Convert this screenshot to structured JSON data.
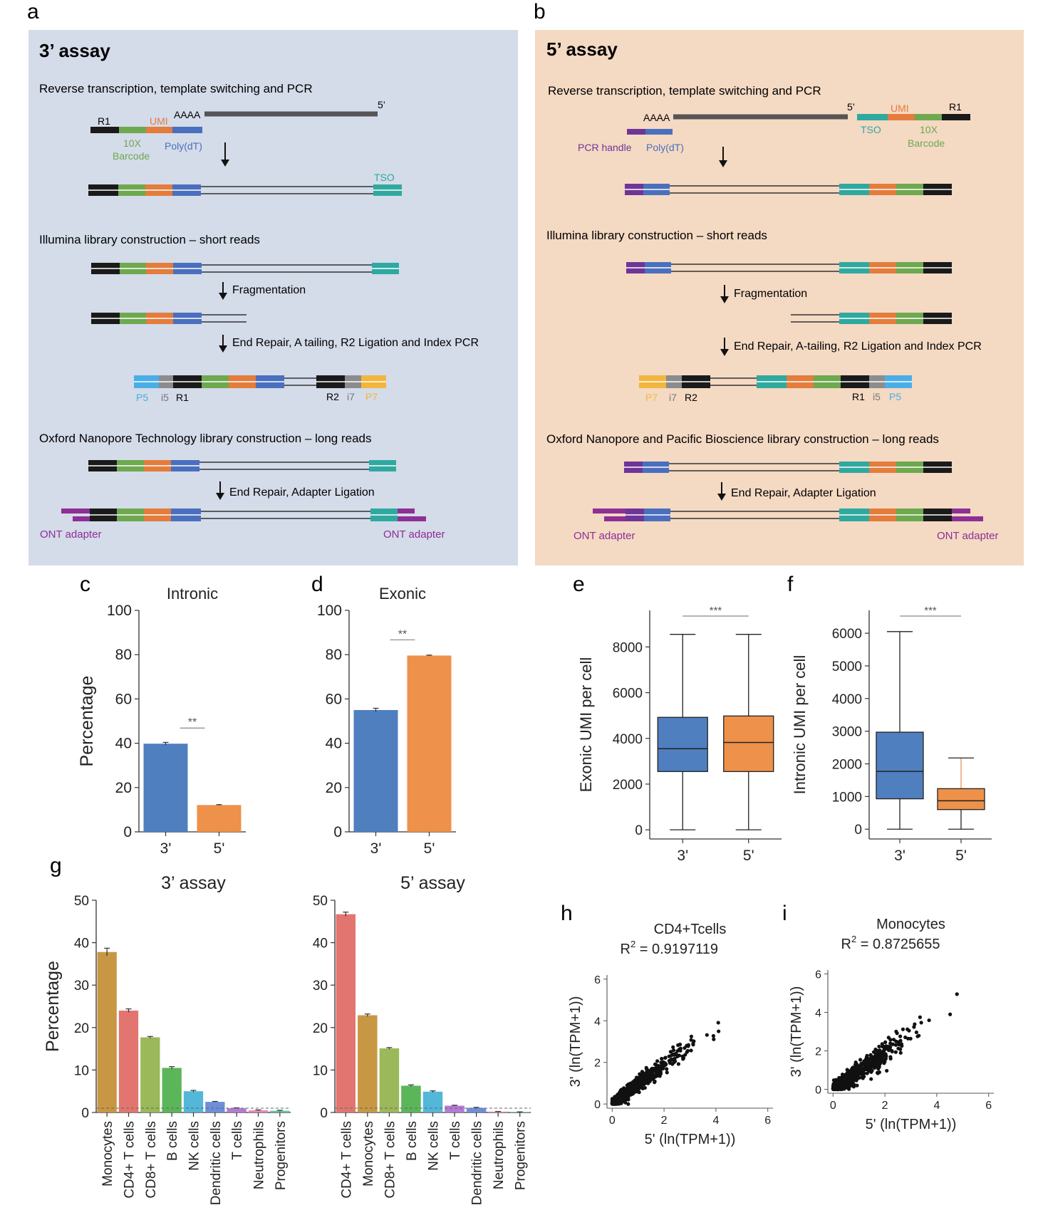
{
  "panels": {
    "a": {
      "letter": "a",
      "title": "3’ assay",
      "rt_heading": "Reverse transcription, template switching and PCR",
      "labels": {
        "r1": "R1",
        "umi": "UMI",
        "aaaa": "AAAA",
        "five_prime": "5’",
        "barcode_10x": "10X",
        "barcode": "Barcode",
        "polydt": "Poly(dT)",
        "tso": "TSO"
      },
      "illumina_heading": "Illumina library construction – short reads",
      "fragmentation": "Fragmentation",
      "end_repair": "End Repair, A tailing, R2 Ligation and Index PCR",
      "index_labels": {
        "p5": "P5",
        "i5": "i5",
        "r1": "R1",
        "r2": "R2",
        "i7": "i7",
        "p7": "P7"
      },
      "ont_heading": "Oxford Nanopore Technology library construction – long reads",
      "adapter_ligation": "End Repair, Adapter Ligation",
      "ont_left": "ONT adapter",
      "ont_right": "ONT adapter"
    },
    "b": {
      "letter": "b",
      "title": "5’ assay",
      "rt_heading": "Reverse transcription, template switching and PCR",
      "labels": {
        "aaaa": "AAAA",
        "five_prime": "5’",
        "umi": "UMI",
        "r1": "R1",
        "tso": "TSO",
        "barcode_10x": "10X",
        "barcode": "Barcode",
        "pcr_handle": "PCR handle",
        "polydt": "Poly(dT)"
      },
      "illumina_heading": "Illumina library construction – short reads",
      "fragmentation": "Fragmentation",
      "end_repair": "End Repair, A-tailing, R2 Ligation and Index PCR",
      "index_labels": {
        "p7": "P7",
        "i7": "i7",
        "r2": "R2",
        "r1": "R1",
        "i5": "i5",
        "p5": "P5"
      },
      "ont_heading": "Oxford Nanopore and Pacific Bioscience library construction – long reads",
      "adapter_ligation": "End Repair, Adapter Ligation",
      "ont_left": "ONT adapter",
      "ont_right": "ONT adapter"
    }
  },
  "colors": {
    "panel_a_bg": "#d4dbe9",
    "panel_b_bg": "#f4d9c3",
    "r1": "#1a1a1a",
    "barcode": "#6ea84f",
    "umi": "#e47c3c",
    "polydt": "#4a6fbe",
    "tso": "#2fa9a0",
    "pcr_handle": "#6f3596",
    "p5": "#4aaee6",
    "index": "#8c8c8c",
    "p7": "#f2b63e",
    "ont": "#8e2f95",
    "blue_bar": "#4f7fbf",
    "orange_bar": "#ee914a"
  },
  "chart_data": [
    {
      "panel": "c",
      "type": "bar",
      "title": "Intronic",
      "ylabel": "Percentage",
      "categories": [
        "3'",
        "5'"
      ],
      "values": [
        39.8,
        12.1
      ],
      "errors": [
        0.6,
        0.2
      ],
      "ylim": [
        0,
        100
      ],
      "yticks": [
        0,
        20,
        40,
        60,
        80,
        100
      ],
      "significance": "**"
    },
    {
      "panel": "d",
      "type": "bar",
      "title": "Exonic",
      "ylabel": "",
      "categories": [
        "3'",
        "5'"
      ],
      "values": [
        55.0,
        79.6
      ],
      "errors": [
        0.8,
        0.2
      ],
      "ylim": [
        0,
        100
      ],
      "yticks": [
        0,
        20,
        40,
        60,
        80,
        100
      ],
      "significance": "**"
    },
    {
      "panel": "e",
      "type": "box",
      "ylabel": "Exonic UMI per cell",
      "categories": [
        "3'",
        "5'"
      ],
      "boxes": [
        {
          "min": 0,
          "q1": 2550,
          "median": 3550,
          "q3": 4920,
          "max": 8550
        },
        {
          "min": 0,
          "q1": 2550,
          "median": 3820,
          "q3": 4980,
          "max": 8550
        }
      ],
      "ylim": [
        -400,
        9600
      ],
      "yticks": [
        0,
        2000,
        4000,
        6000,
        8000
      ],
      "significance": "***"
    },
    {
      "panel": "f",
      "type": "box",
      "ylabel": "Intronic UMI per cell",
      "categories": [
        "3'",
        "5'"
      ],
      "boxes": [
        {
          "min": 0,
          "q1": 930,
          "median": 1770,
          "q3": 2970,
          "max": 6050
        },
        {
          "min": 0,
          "q1": 600,
          "median": 870,
          "q3": 1240,
          "max": 2180
        }
      ],
      "ylim": [
        -300,
        6700
      ],
      "yticks": [
        0,
        1000,
        2000,
        3000,
        4000,
        5000,
        6000
      ],
      "significance": "***"
    },
    {
      "panel": "g",
      "type": "bar",
      "title": "3’ assay",
      "ylabel": "Percentage",
      "categories": [
        "Monocytes",
        "CD4+ T cells",
        "CD8+ T cells",
        "B cells",
        "NK cells",
        "Dendritic cells",
        "T cells",
        "Neutrophils",
        "Progenitors"
      ],
      "values": [
        37.8,
        24.0,
        17.7,
        10.5,
        5.0,
        2.5,
        1.0,
        0.5,
        0.4
      ],
      "errors": [
        0.9,
        0.4,
        0.2,
        0.3,
        0.2,
        0.1,
        0.1,
        0.1,
        0.1
      ],
      "ylim": [
        0,
        50
      ],
      "yticks": [
        0,
        10,
        20,
        30,
        40,
        50
      ]
    },
    {
      "panel": "g",
      "type": "bar",
      "title": "5’ assay",
      "ylabel": "",
      "categories": [
        "CD4+ T cells",
        "Monocytes",
        "CD8+ T cells",
        "B cells",
        "NK cells",
        "T cells",
        "Dendritic cells",
        "Neutrophils",
        "Progenitors"
      ],
      "values": [
        46.7,
        22.9,
        15.1,
        6.3,
        4.9,
        1.6,
        1.1,
        0.2,
        0.1
      ],
      "errors": [
        0.5,
        0.3,
        0.2,
        0.2,
        0.2,
        0.1,
        0.1,
        0.05,
        0.05
      ],
      "ylim": [
        0,
        50
      ],
      "yticks": [
        0,
        10,
        20,
        30,
        40,
        50
      ]
    },
    {
      "panel": "h",
      "type": "scatter",
      "title": "CD4+Tcells",
      "r2_prefix": "R",
      "r2_exp": "2",
      "r2_text": " = 0.9197119",
      "xlabel": "5' (ln(TPM+1))",
      "ylabel": "3' (ln(TPM+1))",
      "xlim": [
        -0.2,
        6.2
      ],
      "ylim": [
        -0.2,
        6.2
      ],
      "xticks": [
        0,
        2,
        4,
        6
      ],
      "yticks": [
        0,
        2,
        4,
        6
      ],
      "r2": 0.9197119,
      "slope": 0.95,
      "spread": 0.18,
      "max_x": 4.9
    },
    {
      "panel": "i",
      "type": "scatter",
      "title": "Monocytes",
      "r2_prefix": "R",
      "r2_exp": "2",
      "r2_text": " = 0.8725655",
      "xlabel": "5' (ln(TPM+1))",
      "ylabel": "3' (ln(TPM+1))",
      "xlim": [
        -0.2,
        6.2
      ],
      "ylim": [
        -0.2,
        6.2
      ],
      "xticks": [
        0,
        2,
        4,
        6
      ],
      "yticks": [
        0,
        2,
        4,
        6
      ],
      "r2": 0.8725655,
      "slope": 0.92,
      "spread": 0.25,
      "max_x": 5.6
    }
  ],
  "chart_letters": {
    "c": "c",
    "d": "d",
    "e": "e",
    "f": "f",
    "g": "g",
    "h": "h",
    "i": "i"
  }
}
